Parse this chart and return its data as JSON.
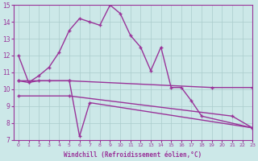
{
  "background_color": "#cce8e8",
  "grid_color": "#aacccc",
  "line_color": "#993399",
  "xlabel": "Windchill (Refroidissement éolien,°C)",
  "xlim": [
    -0.5,
    23
  ],
  "ylim": [
    7,
    15
  ],
  "yticks": [
    7,
    8,
    9,
    10,
    11,
    12,
    13,
    14,
    15
  ],
  "xticks": [
    0,
    1,
    2,
    3,
    4,
    5,
    6,
    7,
    8,
    9,
    10,
    11,
    12,
    13,
    14,
    15,
    16,
    17,
    18,
    19,
    20,
    21,
    22,
    23
  ],
  "line1_x": [
    0,
    1,
    2,
    3,
    4,
    5,
    6,
    7,
    8,
    9,
    10,
    11,
    12,
    13,
    14,
    15,
    16,
    17,
    18,
    23
  ],
  "line1_y": [
    12.0,
    10.4,
    10.8,
    11.3,
    12.2,
    13.5,
    14.2,
    14.0,
    13.8,
    15.0,
    14.5,
    13.2,
    12.5,
    11.1,
    12.5,
    10.1,
    10.1,
    9.3,
    8.4,
    7.7
  ],
  "line2_x": [
    0,
    1,
    2,
    3,
    5,
    6,
    7,
    23
  ],
  "line2_y": [
    10.5,
    10.4,
    10.5,
    10.5,
    10.5,
    7.2,
    9.2,
    7.7
  ],
  "line3_x": [
    0,
    5,
    19,
    23
  ],
  "line3_y": [
    10.5,
    10.5,
    10.1,
    10.1
  ],
  "line4_x": [
    0,
    5,
    21,
    23
  ],
  "line4_y": [
    9.6,
    9.6,
    8.4,
    7.7
  ]
}
